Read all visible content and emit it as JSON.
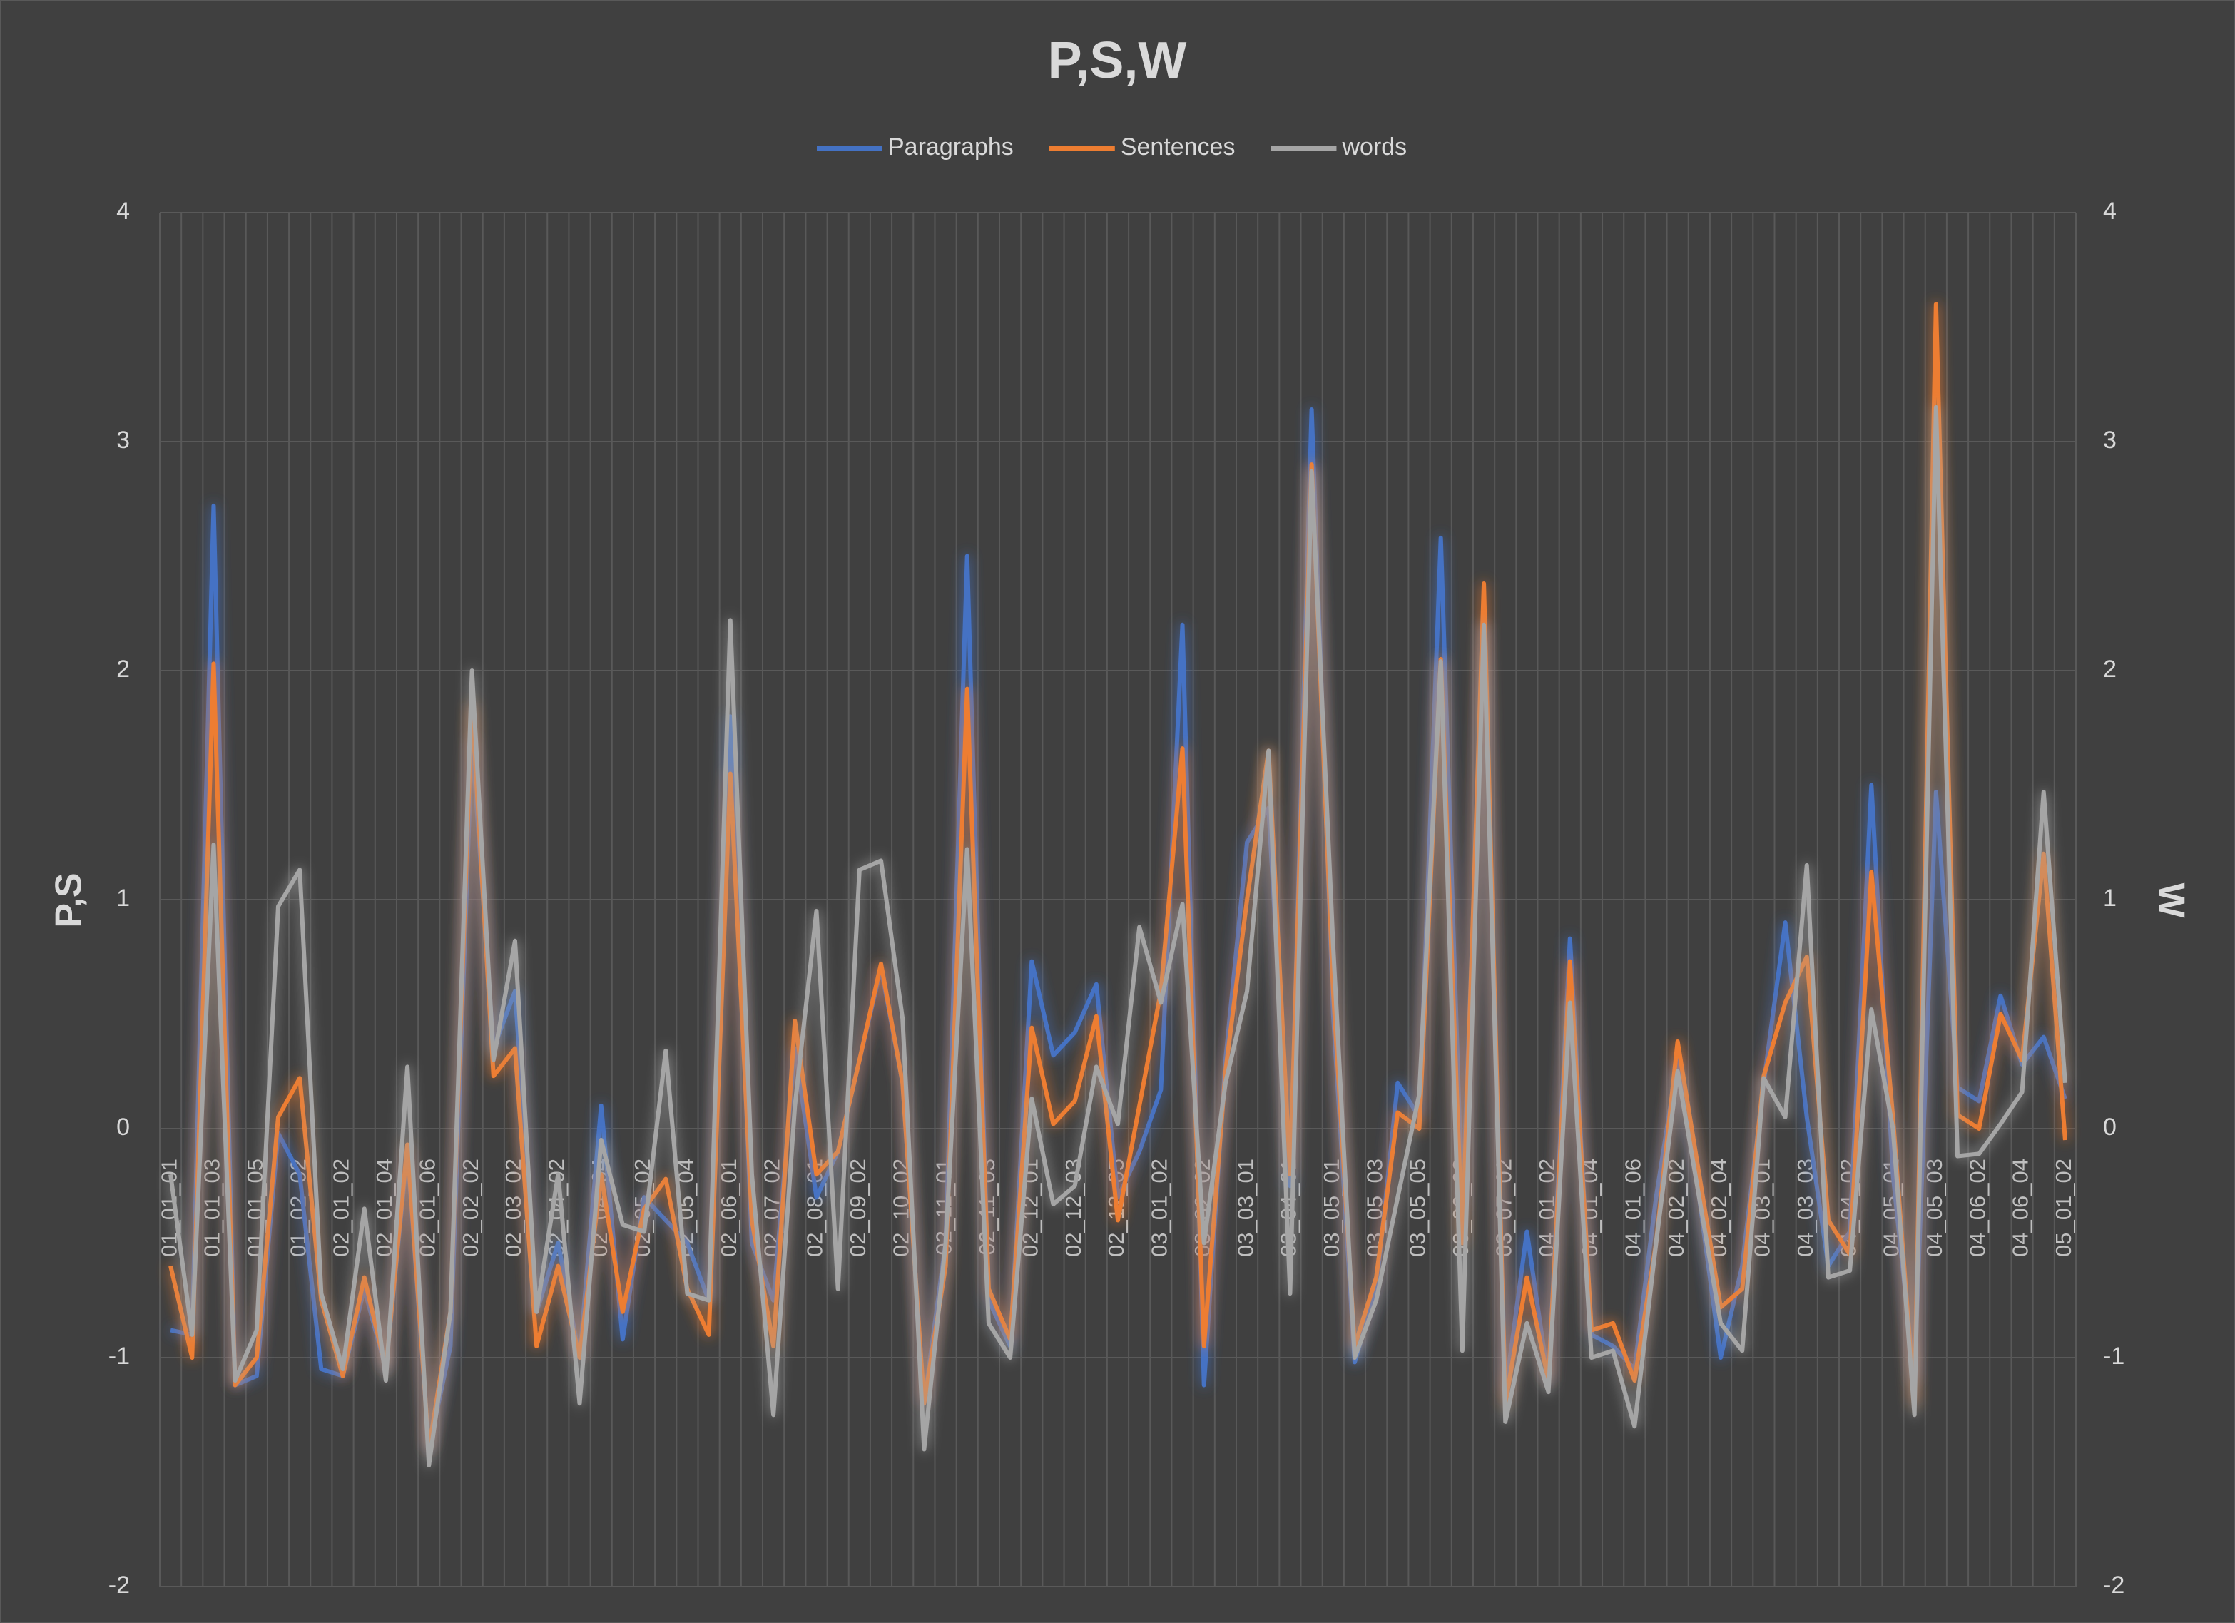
{
  "chart_data": {
    "type": "line",
    "title": "P,S,W",
    "ylabel": "P,S",
    "y2label": "W",
    "legend": "top",
    "grid": true,
    "ylim": [
      -2,
      4
    ],
    "yticks": [
      -2,
      -1,
      0,
      1,
      2,
      3,
      4
    ],
    "y2lim": [
      -2,
      4
    ],
    "y2ticks": [
      -2,
      -1,
      0,
      1,
      2,
      3,
      4
    ],
    "categories": [
      "01_01_01",
      null,
      "01_01_03",
      null,
      "01_01_05",
      null,
      "01_02_02",
      null,
      "02_01_02",
      null,
      "02_01_04",
      null,
      "02_01_06",
      null,
      "02_02_02",
      null,
      "02_03_02",
      null,
      "02_04_02",
      null,
      "02_04_04",
      null,
      "02_05_02",
      null,
      "02_05_04",
      null,
      "02_06_01",
      null,
      "02_07_02",
      null,
      "02_08_01",
      null,
      "02_09_02",
      null,
      "02_10_02",
      null,
      "02_11_01",
      null,
      "02_11_03",
      null,
      "02_12_01",
      null,
      "02_12_03",
      null,
      "02_12_05",
      null,
      "03_01_02",
      null,
      "03_02_02",
      null,
      "03_03_01",
      null,
      "03_04_01",
      null,
      "03_05_01",
      null,
      "03_05_03",
      null,
      "03_05_05",
      null,
      "03_06_02",
      null,
      "03_07_02",
      null,
      "04_01_02",
      null,
      "04_01_04",
      null,
      "04_01_06",
      null,
      "04_02_02",
      null,
      "04_02_04",
      null,
      "04_03_01",
      null,
      "04_03_03",
      null,
      "04_04_02",
      null,
      "04_05_01",
      null,
      "04_05_03",
      null,
      "04_06_02",
      null,
      "04_06_04",
      null,
      "05_01_02"
    ],
    "series": [
      {
        "name": "Paragraphs",
        "color": "#4472c4",
        "values": [
          -0.88,
          -0.9,
          2.72,
          -1.12,
          -1.08,
          -0.02,
          -0.2,
          -1.05,
          -1.08,
          -0.7,
          -1.05,
          -0.1,
          -1.4,
          -0.95,
          1.7,
          0.35,
          0.6,
          -0.8,
          -0.5,
          -1.0,
          0.1,
          -0.92,
          -0.3,
          -0.4,
          -0.5,
          -0.75,
          1.8,
          -0.5,
          -0.75,
          0.35,
          -0.3,
          -0.1,
          0.3,
          0.7,
          0.2,
          -1.2,
          -0.5,
          2.5,
          -0.75,
          -0.95,
          0.73,
          0.32,
          0.42,
          0.63,
          -0.3,
          -0.1,
          0.17,
          2.2,
          -1.12,
          0.3,
          1.25,
          1.4,
          -0.25,
          3.14,
          0.5,
          -1.02,
          -0.7,
          0.2,
          0.05,
          2.58,
          -0.35,
          2.2,
          -1.15,
          -0.45,
          -1.1,
          0.83,
          -0.9,
          -0.95,
          -1.05,
          -0.3,
          0.3,
          -0.3,
          -1.0,
          -0.6,
          0.2,
          0.9,
          0.05,
          -0.6,
          -0.45,
          1.5,
          -0.2,
          -1.1,
          1.47,
          0.18,
          0.12,
          0.58,
          0.28,
          0.4,
          0.13
        ]
      },
      {
        "name": "Sentences",
        "color": "#ed7d31",
        "values": [
          -0.6,
          -1.0,
          2.03,
          -1.12,
          -1.0,
          0.05,
          0.22,
          -0.75,
          -1.08,
          -0.65,
          -1.05,
          -0.07,
          -1.4,
          -0.8,
          1.85,
          0.23,
          0.35,
          -0.95,
          -0.6,
          -1.0,
          -0.2,
          -0.8,
          -0.35,
          -0.22,
          -0.7,
          -0.9,
          1.55,
          -0.4,
          -0.95,
          0.47,
          -0.2,
          -0.1,
          0.3,
          0.72,
          0.2,
          -1.2,
          -0.6,
          1.92,
          -0.7,
          -0.92,
          0.44,
          0.02,
          0.12,
          0.49,
          -0.4,
          0.1,
          0.6,
          1.66,
          -0.95,
          0.25,
          1.0,
          1.65,
          -0.2,
          2.9,
          0.6,
          -0.95,
          -0.65,
          0.07,
          0.0,
          2.05,
          -0.5,
          2.38,
          -1.2,
          -0.65,
          -1.1,
          0.73,
          -0.88,
          -0.85,
          -1.1,
          -0.5,
          0.38,
          -0.2,
          -0.78,
          -0.7,
          0.23,
          0.55,
          0.75,
          -0.4,
          -0.55,
          1.12,
          0.05,
          -1.2,
          3.6,
          0.06,
          0.0,
          0.5,
          0.3,
          1.2,
          -0.05
        ]
      },
      {
        "name": "words",
        "color": "#a5a5a5",
        "axis": "y2",
        "values": [
          -0.2,
          -0.9,
          1.24,
          -1.1,
          -0.88,
          0.97,
          1.13,
          -0.72,
          -1.05,
          -0.35,
          -1.1,
          0.27,
          -1.47,
          -0.8,
          2.0,
          0.3,
          0.82,
          -0.8,
          -0.2,
          -1.2,
          -0.05,
          -0.42,
          -0.45,
          0.34,
          -0.72,
          -0.75,
          2.22,
          -0.2,
          -1.25,
          0.1,
          0.95,
          -0.7,
          1.13,
          1.17,
          0.48,
          -1.4,
          -0.5,
          1.22,
          -0.85,
          -1.0,
          0.13,
          -0.33,
          -0.25,
          0.27,
          0.02,
          0.88,
          0.55,
          0.98,
          -0.5,
          0.2,
          0.6,
          1.65,
          -0.72,
          2.87,
          0.8,
          -1.0,
          -0.75,
          -0.3,
          0.15,
          2.04,
          -0.97,
          2.2,
          -1.28,
          -0.85,
          -1.15,
          0.55,
          -1.0,
          -0.97,
          -1.3,
          -0.5,
          0.25,
          -0.3,
          -0.85,
          -0.97,
          0.22,
          0.05,
          1.15,
          -0.65,
          -0.62,
          0.52,
          0.0,
          -1.25,
          3.15,
          -0.12,
          -0.11,
          0.02,
          0.16,
          1.47,
          0.2
        ]
      }
    ]
  }
}
